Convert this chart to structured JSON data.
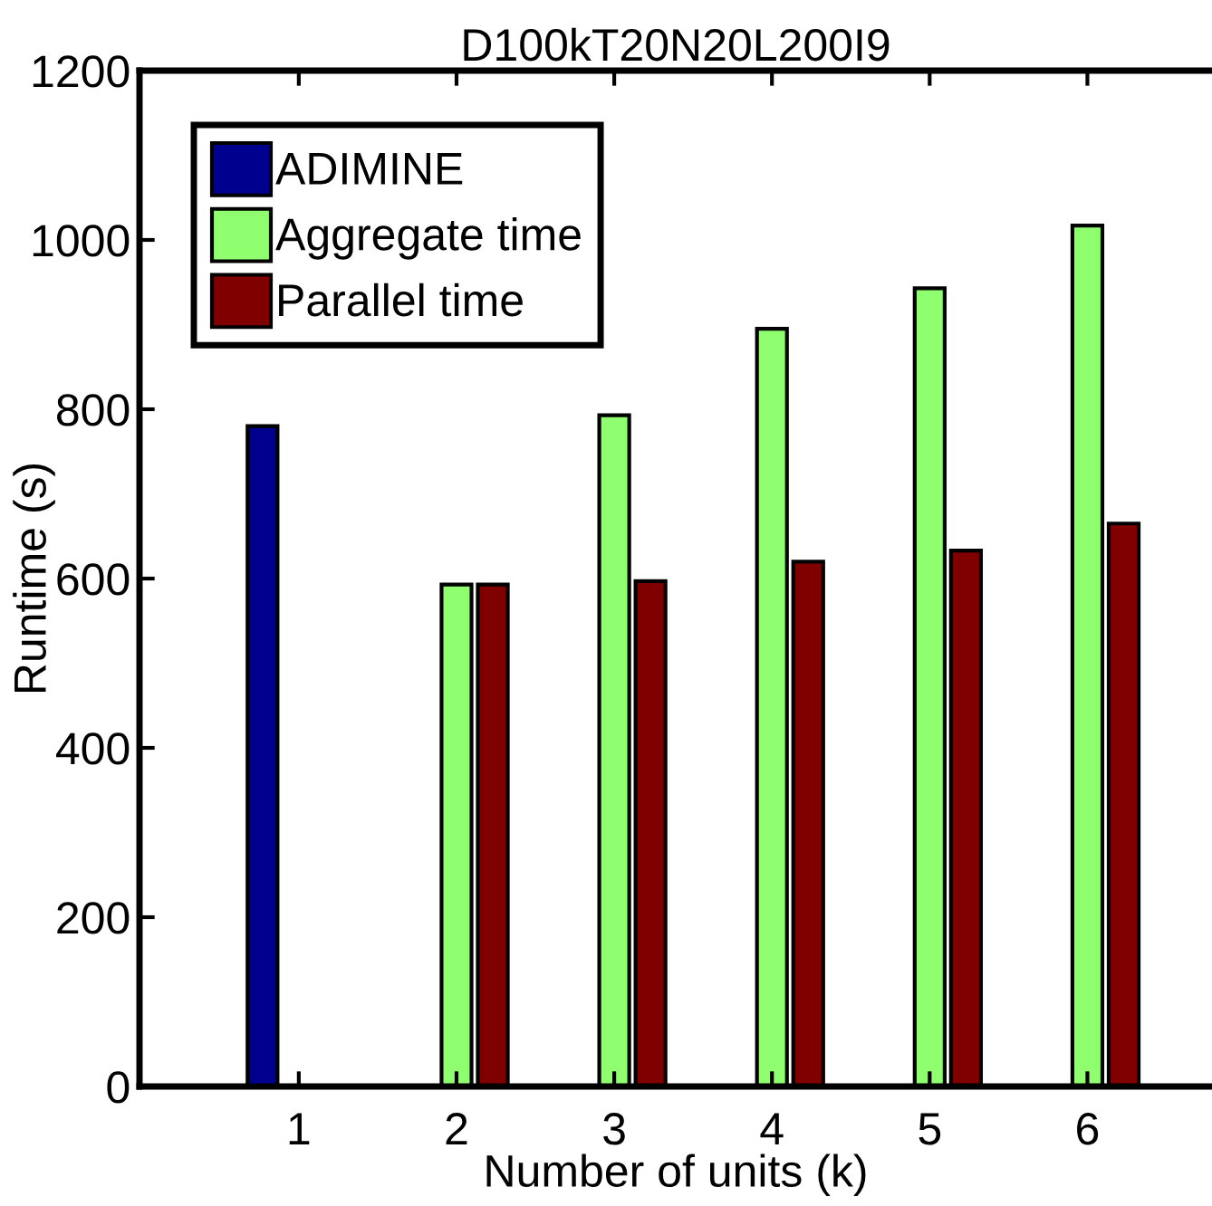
{
  "chart_data": {
    "type": "bar",
    "title": "D100kT20N20L200I9",
    "xlabel": "Number of units (k)",
    "ylabel": "Runtime (s)",
    "categories": [
      "1",
      "2",
      "3",
      "4",
      "5",
      "6"
    ],
    "series": [
      {
        "name": "ADIMINE",
        "color": "#00008f",
        "values": [
          780,
          null,
          null,
          null,
          null,
          null
        ]
      },
      {
        "name": "Aggregate time",
        "color": "#8fff70",
        "values": [
          null,
          593,
          793,
          895,
          943,
          1017
        ]
      },
      {
        "name": "Parallel time",
        "color": "#800000",
        "values": [
          null,
          593,
          597,
          620,
          633,
          665
        ]
      }
    ],
    "ylim": [
      0,
      1200
    ],
    "yticks": [
      0,
      200,
      400,
      600,
      800,
      1000,
      1200
    ],
    "grid": false,
    "legend": "top left"
  }
}
